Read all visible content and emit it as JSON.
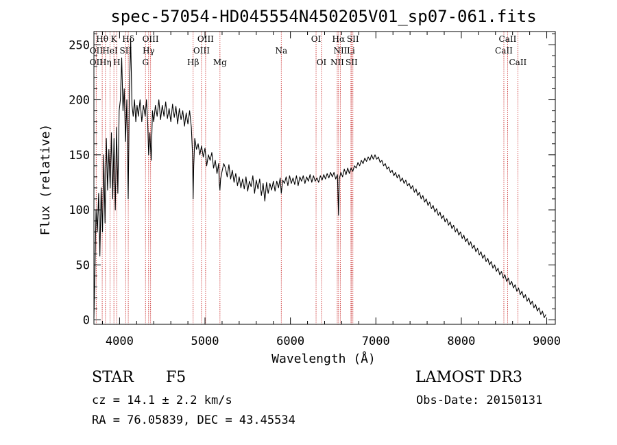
{
  "chart_data": {
    "type": "line",
    "title": "spec-57054-HD045554N450205V01_sp07-061.fits",
    "xlabel": "Wavelength (Å)",
    "ylabel": "Flux (relative)",
    "xlim": [
      3700,
      9100
    ],
    "ylim": [
      -4,
      262
    ],
    "xticks": [
      4000,
      5000,
      6000,
      7000,
      8000,
      9000
    ],
    "yticks": [
      0,
      50,
      100,
      150,
      200,
      250
    ],
    "x_minor_step": 200,
    "y_minor_step": 10,
    "grid": false,
    "series": [
      {
        "name": "spectrum",
        "points": [
          [
            3700,
            2
          ],
          [
            3712,
            45
          ],
          [
            3725,
            100
          ],
          [
            3740,
            80
          ],
          [
            3755,
            115
          ],
          [
            3770,
            58
          ],
          [
            3785,
            120
          ],
          [
            3800,
            80
          ],
          [
            3815,
            150
          ],
          [
            3830,
            88
          ],
          [
            3845,
            165
          ],
          [
            3860,
            118
          ],
          [
            3875,
            155
          ],
          [
            3890,
            120
          ],
          [
            3905,
            170
          ],
          [
            3920,
            110
          ],
          [
            3935,
            165
          ],
          [
            3950,
            100
          ],
          [
            3965,
            175
          ],
          [
            3980,
            115
          ],
          [
            3995,
            190
          ],
          [
            4010,
            200
          ],
          [
            4025,
            238
          ],
          [
            4040,
            190
          ],
          [
            4055,
            210
          ],
          [
            4070,
            162
          ],
          [
            4085,
            200
          ],
          [
            4101,
            110
          ],
          [
            4115,
            205
          ],
          [
            4130,
            255
          ],
          [
            4145,
            195
          ],
          [
            4160,
            185
          ],
          [
            4175,
            200
          ],
          [
            4190,
            180
          ],
          [
            4205,
            195
          ],
          [
            4220,
            185
          ],
          [
            4240,
            200
          ],
          [
            4260,
            180
          ],
          [
            4280,
            195
          ],
          [
            4300,
            185
          ],
          [
            4315,
            200
          ],
          [
            4330,
            178
          ],
          [
            4340,
            150
          ],
          [
            4355,
            170
          ],
          [
            4370,
            145
          ],
          [
            4385,
            190
          ],
          [
            4400,
            180
          ],
          [
            4420,
            195
          ],
          [
            4440,
            185
          ],
          [
            4460,
            200
          ],
          [
            4480,
            182
          ],
          [
            4500,
            195
          ],
          [
            4520,
            185
          ],
          [
            4540,
            198
          ],
          [
            4560,
            183
          ],
          [
            4580,
            192
          ],
          [
            4600,
            180
          ],
          [
            4620,
            196
          ],
          [
            4640,
            184
          ],
          [
            4660,
            194
          ],
          [
            4680,
            178
          ],
          [
            4700,
            192
          ],
          [
            4720,
            182
          ],
          [
            4740,
            190
          ],
          [
            4760,
            176
          ],
          [
            4780,
            188
          ],
          [
            4800,
            178
          ],
          [
            4820,
            190
          ],
          [
            4840,
            175
          ],
          [
            4855,
            150
          ],
          [
            4861,
            110
          ],
          [
            4868,
            140
          ],
          [
            4880,
            165
          ],
          [
            4900,
            155
          ],
          [
            4920,
            160
          ],
          [
            4940,
            150
          ],
          [
            4960,
            158
          ],
          [
            4980,
            148
          ],
          [
            5000,
            156
          ],
          [
            5020,
            140
          ],
          [
            5040,
            150
          ],
          [
            5060,
            145
          ],
          [
            5080,
            152
          ],
          [
            5100,
            138
          ],
          [
            5120,
            145
          ],
          [
            5140,
            133
          ],
          [
            5160,
            142
          ],
          [
            5167,
            125
          ],
          [
            5175,
            118
          ],
          [
            5183,
            128
          ],
          [
            5200,
            135
          ],
          [
            5220,
            142
          ],
          [
            5240,
            138
          ],
          [
            5260,
            130
          ],
          [
            5280,
            141
          ],
          [
            5300,
            128
          ],
          [
            5320,
            136
          ],
          [
            5340,
            125
          ],
          [
            5360,
            133
          ],
          [
            5380,
            122
          ],
          [
            5400,
            130
          ],
          [
            5420,
            120
          ],
          [
            5440,
            128
          ],
          [
            5460,
            119
          ],
          [
            5480,
            130
          ],
          [
            5500,
            117
          ],
          [
            5520,
            126
          ],
          [
            5540,
            121
          ],
          [
            5560,
            131
          ],
          [
            5580,
            115
          ],
          [
            5600,
            127
          ],
          [
            5620,
            119
          ],
          [
            5640,
            128
          ],
          [
            5660,
            113
          ],
          [
            5680,
            124
          ],
          [
            5700,
            108
          ],
          [
            5720,
            125
          ],
          [
            5740,
            115
          ],
          [
            5760,
            124
          ],
          [
            5780,
            118
          ],
          [
            5800,
            126
          ],
          [
            5820,
            117
          ],
          [
            5840,
            126
          ],
          [
            5860,
            120
          ],
          [
            5880,
            129
          ],
          [
            5893,
            115
          ],
          [
            5910,
            127
          ],
          [
            5930,
            124
          ],
          [
            5950,
            130
          ],
          [
            5970,
            122
          ],
          [
            5990,
            131
          ],
          [
            6010,
            124
          ],
          [
            6030,
            129
          ],
          [
            6050,
            123
          ],
          [
            6070,
            131
          ],
          [
            6090,
            122
          ],
          [
            6110,
            130
          ],
          [
            6130,
            126
          ],
          [
            6150,
            131
          ],
          [
            6170,
            124
          ],
          [
            6190,
            130
          ],
          [
            6210,
            126
          ],
          [
            6230,
            132
          ],
          [
            6250,
            125
          ],
          [
            6270,
            131
          ],
          [
            6290,
            126
          ],
          [
            6310,
            129
          ],
          [
            6330,
            125
          ],
          [
            6350,
            131
          ],
          [
            6370,
            127
          ],
          [
            6390,
            132
          ],
          [
            6410,
            128
          ],
          [
            6430,
            133
          ],
          [
            6450,
            129
          ],
          [
            6470,
            134
          ],
          [
            6490,
            130
          ],
          [
            6510,
            134
          ],
          [
            6530,
            128
          ],
          [
            6550,
            132
          ],
          [
            6563,
            95
          ],
          [
            6572,
            128
          ],
          [
            6590,
            134
          ],
          [
            6610,
            130
          ],
          [
            6630,
            137
          ],
          [
            6650,
            132
          ],
          [
            6670,
            138
          ],
          [
            6690,
            133
          ],
          [
            6710,
            138
          ],
          [
            6730,
            135
          ],
          [
            6750,
            140
          ],
          [
            6770,
            138
          ],
          [
            6790,
            143
          ],
          [
            6810,
            140
          ],
          [
            6830,
            145
          ],
          [
            6850,
            142
          ],
          [
            6870,
            147
          ],
          [
            6890,
            144
          ],
          [
            6910,
            148
          ],
          [
            6930,
            145
          ],
          [
            6950,
            150
          ],
          [
            6970,
            146
          ],
          [
            6990,
            150
          ],
          [
            7010,
            146
          ],
          [
            7030,
            148
          ],
          [
            7050,
            143
          ],
          [
            7070,
            145
          ],
          [
            7090,
            140
          ],
          [
            7110,
            142
          ],
          [
            7130,
            137
          ],
          [
            7150,
            139
          ],
          [
            7170,
            134
          ],
          [
            7190,
            136
          ],
          [
            7210,
            131
          ],
          [
            7230,
            134
          ],
          [
            7250,
            129
          ],
          [
            7270,
            132
          ],
          [
            7290,
            126
          ],
          [
            7310,
            129
          ],
          [
            7330,
            124
          ],
          [
            7350,
            127
          ],
          [
            7370,
            122
          ],
          [
            7390,
            124
          ],
          [
            7410,
            119
          ],
          [
            7430,
            122
          ],
          [
            7450,
            116
          ],
          [
            7470,
            119
          ],
          [
            7490,
            113
          ],
          [
            7510,
            116
          ],
          [
            7530,
            110
          ],
          [
            7550,
            113
          ],
          [
            7570,
            107
          ],
          [
            7590,
            110
          ],
          [
            7610,
            104
          ],
          [
            7630,
            107
          ],
          [
            7650,
            101
          ],
          [
            7670,
            104
          ],
          [
            7690,
            98
          ],
          [
            7710,
            101
          ],
          [
            7730,
            95
          ],
          [
            7750,
            98
          ],
          [
            7770,
            92
          ],
          [
            7790,
            95
          ],
          [
            7810,
            89
          ],
          [
            7830,
            92
          ],
          [
            7850,
            86
          ],
          [
            7870,
            89
          ],
          [
            7890,
            83
          ],
          [
            7910,
            86
          ],
          [
            7930,
            80
          ],
          [
            7950,
            83
          ],
          [
            7970,
            77
          ],
          [
            7990,
            80
          ],
          [
            8010,
            74
          ],
          [
            8030,
            77
          ],
          [
            8050,
            71
          ],
          [
            8070,
            74
          ],
          [
            8090,
            68
          ],
          [
            8110,
            71
          ],
          [
            8130,
            65
          ],
          [
            8150,
            68
          ],
          [
            8170,
            62
          ],
          [
            8190,
            65
          ],
          [
            8210,
            59
          ],
          [
            8230,
            62
          ],
          [
            8250,
            56
          ],
          [
            8270,
            59
          ],
          [
            8290,
            53
          ],
          [
            8310,
            56
          ],
          [
            8330,
            50
          ],
          [
            8350,
            53
          ],
          [
            8370,
            47
          ],
          [
            8390,
            50
          ],
          [
            8410,
            44
          ],
          [
            8430,
            47
          ],
          [
            8450,
            41
          ],
          [
            8470,
            44
          ],
          [
            8490,
            38
          ],
          [
            8510,
            41
          ],
          [
            8530,
            35
          ],
          [
            8550,
            38
          ],
          [
            8570,
            32
          ],
          [
            8590,
            35
          ],
          [
            8610,
            29
          ],
          [
            8630,
            32
          ],
          [
            8650,
            26
          ],
          [
            8670,
            29
          ],
          [
            8690,
            23
          ],
          [
            8710,
            26
          ],
          [
            8730,
            20
          ],
          [
            8750,
            23
          ],
          [
            8770,
            17
          ],
          [
            8790,
            20
          ],
          [
            8810,
            14
          ],
          [
            8830,
            17
          ],
          [
            8850,
            11
          ],
          [
            8870,
            14
          ],
          [
            8890,
            8
          ],
          [
            8910,
            11
          ],
          [
            8930,
            5
          ],
          [
            8950,
            8
          ],
          [
            8970,
            2
          ],
          [
            8990,
            5
          ]
        ]
      }
    ],
    "line_color": "#000000",
    "marker_color": "#cc3333",
    "annotations": [
      {
        "label": "Hθ",
        "x": 3797,
        "row": 1
      },
      {
        "label": "K",
        "x": 3934,
        "row": 1
      },
      {
        "label": "Hδ",
        "x": 4102,
        "row": 1
      },
      {
        "label": "OIII",
        "x": 4363,
        "row": 1
      },
      {
        "label": "OIII",
        "x": 5007,
        "row": 1
      },
      {
        "label": "OI",
        "x": 6300,
        "row": 1
      },
      {
        "label": "Hα",
        "x": 6563,
        "row": 1
      },
      {
        "label": "SII",
        "x": 6731,
        "row": 1
      },
      {
        "label": "CaII",
        "x": 8542,
        "row": 1
      },
      {
        "label": "OII",
        "x": 3727,
        "row": 2
      },
      {
        "label": "HeI",
        "x": 3889,
        "row": 2
      },
      {
        "label": "SII",
        "x": 4072,
        "row": 2
      },
      {
        "label": "Hγ",
        "x": 4340,
        "row": 2
      },
      {
        "label": "OIII",
        "x": 4959,
        "row": 2
      },
      {
        "label": "Na",
        "x": 5893,
        "row": 2
      },
      {
        "label": "NII",
        "x": 6584,
        "row": 2
      },
      {
        "label": "Li",
        "x": 6708,
        "row": 2
      },
      {
        "label": "CaII",
        "x": 8498,
        "row": 2
      },
      {
        "label": "OII",
        "x": 3727,
        "row": 3
      },
      {
        "label": "Hη",
        "x": 3835,
        "row": 3
      },
      {
        "label": "H",
        "x": 3968,
        "row": 3
      },
      {
        "label": "G",
        "x": 4304,
        "row": 3
      },
      {
        "label": "Hβ",
        "x": 4861,
        "row": 3
      },
      {
        "label": "Mg",
        "x": 5175,
        "row": 3
      },
      {
        "label": "OI",
        "x": 6364,
        "row": 3
      },
      {
        "label": "NII",
        "x": 6548,
        "row": 3
      },
      {
        "label": "SII",
        "x": 6716,
        "row": 3
      },
      {
        "label": "CaII",
        "x": 8662,
        "row": 3
      }
    ],
    "marker_lines": [
      3727,
      3797,
      3835,
      3889,
      3934,
      3968,
      4072,
      4102,
      4304,
      4340,
      4363,
      4861,
      4959,
      5007,
      5175,
      5893,
      6300,
      6364,
      6548,
      6563,
      6584,
      6708,
      6716,
      6731,
      8498,
      8542,
      8662
    ]
  },
  "info": {
    "object_class": "STAR",
    "subclass": "F5",
    "survey": "LAMOST DR3",
    "redshift": "cz = 14.1 ± 2.2 km/s",
    "obs_date": "Obs-Date: 20150131",
    "coordinates": "RA =  76.05839, DEC =  43.45534"
  }
}
